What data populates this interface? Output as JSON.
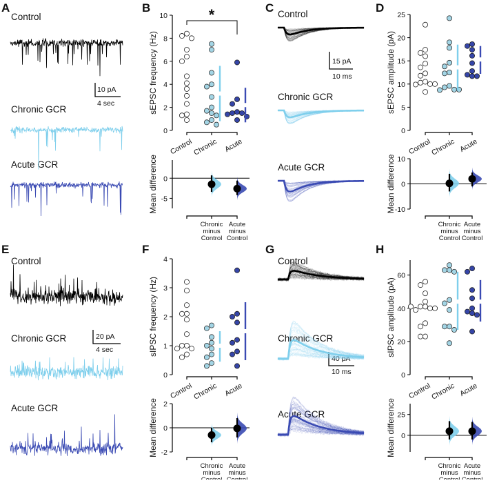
{
  "colors": {
    "control": "#000000",
    "chronic": "#7fcfec",
    "acute": "#3a4ab3",
    "chronic_point": "#a3d5e5",
    "acute_point": "#3545a8"
  },
  "panels": {
    "A": {
      "letter": "A",
      "labels": [
        "Control",
        "Chronic GCR",
        "Acute GCR"
      ],
      "scale_y": "10 pA",
      "scale_x": "4 sec"
    },
    "C": {
      "letter": "C",
      "labels": [
        "Control",
        "Chronic GCR",
        "Acute GCR"
      ],
      "scale_y": "15 pA",
      "scale_x": "10 ms"
    },
    "E": {
      "letter": "E",
      "labels": [
        "Control",
        "Chronic GCR",
        "Acute GCR"
      ],
      "scale_y": "20 pA",
      "scale_x": "4 sec"
    },
    "G": {
      "letter": "G",
      "labels": [
        "Control",
        "Chronic GCR",
        "Acute GCR"
      ],
      "scale_y": "40 pA",
      "scale_x": "10 ms"
    }
  },
  "chart_data": [
    {
      "panel": "B",
      "type": "scatter",
      "ylabel": "sEPSC frequency (Hz)",
      "ylim": [
        0,
        10
      ],
      "yticks": [
        0,
        2,
        4,
        6,
        8,
        10
      ],
      "categories": [
        "Control",
        "Chronic",
        "Acute"
      ],
      "significance": {
        "between": [
          "Control",
          "Acute"
        ],
        "label": "*"
      },
      "series": [
        {
          "name": "Control",
          "values": [
            8.4,
            8.2,
            8.0,
            7.0,
            6.4,
            6.0,
            4.7,
            4.1,
            3.6,
            3.0,
            2.3,
            1.4,
            1.3,
            0.9
          ]
        },
        {
          "name": "Chronic",
          "values": [
            7.5,
            7.0,
            5.0,
            4.0,
            3.8,
            2.9,
            2.0,
            1.7,
            1.5,
            1.3,
            0.9,
            0.7,
            0.5
          ],
          "mean_sd": [
            3.2,
            0.8,
            5.6
          ]
        },
        {
          "name": "Acute",
          "values": [
            5.9,
            2.7,
            2.3,
            1.6,
            1.5,
            1.5,
            1.4,
            1.2,
            0.9
          ],
          "mean_sd": [
            2.2,
            0.7,
            3.7
          ]
        }
      ],
      "diff": {
        "ylabel": "Mean difference",
        "ylim": [
          -7.5,
          4.5
        ],
        "yticks": [
          -5,
          0
        ],
        "categories": [
          [
            "Chronic",
            "minus",
            "Control"
          ],
          [
            "Acute",
            "minus",
            "Control"
          ]
        ],
        "values": [
          {
            "mean": -1.5,
            "ci": [
              -3.4,
              0.7
            ]
          },
          {
            "mean": -2.6,
            "ci": [
              -4.2,
              -0.6
            ]
          }
        ]
      }
    },
    {
      "panel": "D",
      "type": "scatter",
      "ylabel": "sEPSC amplitude (pA)",
      "ylim": [
        0,
        25
      ],
      "yticks": [
        0,
        5,
        10,
        15,
        20,
        25
      ],
      "categories": [
        "Control",
        "Chronic",
        "Acute"
      ],
      "series": [
        {
          "name": "Control",
          "values": [
            22.8,
            17.4,
            16.7,
            16.0,
            14.4,
            13.6,
            12.3,
            11.8,
            10.5,
            10.3,
            10.0,
            9.9,
            10.0,
            8.3
          ]
        },
        {
          "name": "Chronic",
          "values": [
            24.2,
            19.0,
            17.8,
            14.6,
            13.8,
            12.5,
            12.3,
            9.6,
            9.3,
            8.8,
            8.7,
            8.8
          ],
          "mean_sd": [
            13.6,
            8.6,
            18.5
          ]
        },
        {
          "name": "Acute",
          "values": [
            18.6,
            18.2,
            17.4,
            16.1,
            14.5,
            12.8,
            12.0,
            11.7,
            11.7
          ],
          "mean_sd": [
            15.3,
            12.2,
            18.2
          ]
        }
      ],
      "diff": {
        "ylabel": "Mean difference",
        "ylim": [
          -10,
          10
        ],
        "yticks": [
          -10,
          0,
          10
        ],
        "categories": [
          [
            "Chronic",
            "minus",
            "Control"
          ],
          [
            "Acute",
            "minus",
            "Control"
          ]
        ],
        "values": [
          {
            "mean": 0.2,
            "ci": [
              -3,
              4
            ]
          },
          {
            "mean": 2.0,
            "ci": [
              -1,
              4.5
            ]
          }
        ]
      }
    },
    {
      "panel": "F",
      "type": "scatter",
      "ylabel": "sIPSC frequency (Hz)",
      "ylim": [
        0,
        4
      ],
      "yticks": [
        0,
        1,
        2,
        3,
        4
      ],
      "categories": [
        "Control",
        "Chronic",
        "Acute"
      ],
      "series": [
        {
          "name": "Control",
          "values": [
            3.2,
            2.9,
            2.4,
            2.1,
            2.1,
            1.9,
            1.4,
            1.0,
            1.0,
            0.9,
            0.9,
            0.7,
            0.6
          ]
        },
        {
          "name": "Chronic",
          "values": [
            1.7,
            1.6,
            1.3,
            1.1,
            1.0,
            0.9,
            0.7,
            0.6,
            0.4,
            0.3
          ],
          "mean_sd": [
            1.0,
            0.45,
            1.5
          ]
        },
        {
          "name": "Acute",
          "values": [
            3.6,
            2.1,
            2.0,
            1.8,
            1.2,
            1.1,
            0.8,
            0.7,
            0.3
          ],
          "mean_sd": [
            1.5,
            0.5,
            2.5
          ]
        }
      ],
      "diff": {
        "ylabel": "Mean difference",
        "ylim": [
          -2,
          2
        ],
        "yticks": [
          -2,
          0,
          2
        ],
        "categories": [
          [
            "Chronic",
            "minus",
            "Control"
          ],
          [
            "Acute",
            "minus",
            "Control"
          ]
        ],
        "values": [
          {
            "mean": -0.6,
            "ci": [
              -1.2,
              0.0
            ]
          },
          {
            "mean": -0.05,
            "ci": [
              -0.8,
              0.8
            ]
          }
        ]
      }
    },
    {
      "panel": "H",
      "type": "scatter",
      "ylabel": "sIPSC amplitude (pA)",
      "ylim": [
        0,
        69
      ],
      "yticks": [
        0,
        20,
        40,
        60
      ],
      "categories": [
        "Control",
        "Chronic",
        "Acute"
      ],
      "series": [
        {
          "name": "Control",
          "values": [
            56,
            54,
            49,
            44,
            41,
            41,
            40,
            39,
            40,
            41,
            31,
            29,
            23,
            23
          ]
        },
        {
          "name": "Chronic",
          "values": [
            66,
            63,
            63,
            62,
            45,
            43,
            39,
            29,
            29,
            27,
            19
          ],
          "mean_sd": [
            44,
            27,
            62
          ]
        },
        {
          "name": "Acute",
          "values": [
            64,
            62,
            51,
            46,
            40,
            38,
            37,
            36,
            26
          ],
          "mean_sd": [
            44,
            32,
            57
          ]
        }
      ],
      "diff": {
        "ylabel": "Mean difference",
        "ylim": [
          -20,
          38
        ],
        "yticks": [
          0,
          25
        ],
        "categories": [
          [
            "Chronic",
            "minus",
            "Control"
          ],
          [
            "Acute",
            "minus",
            "Control"
          ]
        ],
        "values": [
          {
            "mean": 5,
            "ci": [
              -5,
              17
            ]
          },
          {
            "mean": 5,
            "ci": [
              -5,
              16
            ]
          }
        ]
      }
    }
  ]
}
